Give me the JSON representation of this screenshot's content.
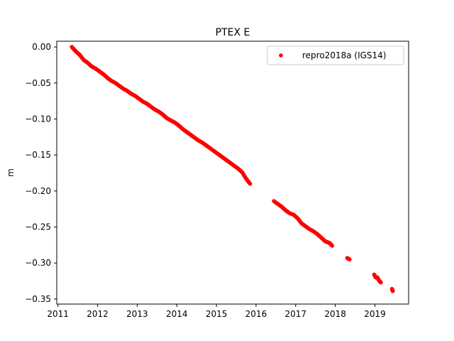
{
  "chart_data": {
    "type": "scatter",
    "title": "PTEX E",
    "xlabel": "",
    "ylabel": "m",
    "xlim": [
      2010.97,
      2019.85
    ],
    "ylim": [
      -0.357,
      0.008
    ],
    "x_ticks": [
      2011,
      2012,
      2013,
      2014,
      2015,
      2016,
      2017,
      2018,
      2019
    ],
    "x_tick_labels": [
      "2011",
      "2012",
      "2013",
      "2014",
      "2015",
      "2016",
      "2017",
      "2018",
      "2019"
    ],
    "y_ticks": [
      0.0,
      -0.05,
      -0.1,
      -0.15,
      -0.2,
      -0.25,
      -0.3,
      -0.35
    ],
    "y_tick_labels": [
      "0.00",
      "−0.05",
      "−0.10",
      "−0.15",
      "−0.20",
      "−0.25",
      "−0.30",
      "−0.35"
    ],
    "grid": false,
    "legend_position": "upper right",
    "colors": {
      "series": "#ff0000",
      "axes": "#000000",
      "background": "#ffffff"
    },
    "series": [
      {
        "name": "repro2018a (IGS14)",
        "marker": "dot",
        "points": [
          [
            2011.35,
            0.0
          ],
          [
            2011.45,
            -0.006
          ],
          [
            2011.55,
            -0.011
          ],
          [
            2011.65,
            -0.018
          ],
          [
            2011.75,
            -0.022
          ],
          [
            2011.85,
            -0.027
          ],
          [
            2011.95,
            -0.03
          ],
          [
            2012.05,
            -0.034
          ],
          [
            2012.15,
            -0.038
          ],
          [
            2012.25,
            -0.043
          ],
          [
            2012.35,
            -0.047
          ],
          [
            2012.45,
            -0.05
          ],
          [
            2012.55,
            -0.054
          ],
          [
            2012.65,
            -0.058
          ],
          [
            2012.75,
            -0.061
          ],
          [
            2012.85,
            -0.065
          ],
          [
            2012.95,
            -0.068
          ],
          [
            2013.05,
            -0.072
          ],
          [
            2013.15,
            -0.076
          ],
          [
            2013.25,
            -0.079
          ],
          [
            2013.35,
            -0.083
          ],
          [
            2013.45,
            -0.087
          ],
          [
            2013.55,
            -0.09
          ],
          [
            2013.65,
            -0.094
          ],
          [
            2013.75,
            -0.099
          ],
          [
            2013.85,
            -0.102
          ],
          [
            2013.95,
            -0.105
          ],
          [
            2014.05,
            -0.109
          ],
          [
            2014.15,
            -0.114
          ],
          [
            2014.25,
            -0.118
          ],
          [
            2014.35,
            -0.122
          ],
          [
            2014.45,
            -0.126
          ],
          [
            2014.55,
            -0.13
          ],
          [
            2014.65,
            -0.133
          ],
          [
            2014.75,
            -0.137
          ],
          [
            2014.85,
            -0.141
          ],
          [
            2014.95,
            -0.145
          ],
          [
            2015.05,
            -0.149
          ],
          [
            2015.15,
            -0.153
          ],
          [
            2015.25,
            -0.157
          ],
          [
            2015.35,
            -0.161
          ],
          [
            2015.45,
            -0.165
          ],
          [
            2015.55,
            -0.169
          ],
          [
            2015.65,
            -0.174
          ],
          [
            2015.75,
            -0.183
          ],
          [
            2015.85,
            -0.19
          ],
          [
            2016.45,
            -0.214
          ],
          [
            2016.55,
            -0.218
          ],
          [
            2016.65,
            -0.222
          ],
          [
            2016.75,
            -0.227
          ],
          [
            2016.85,
            -0.231
          ],
          [
            2016.95,
            -0.233
          ],
          [
            2017.05,
            -0.238
          ],
          [
            2017.15,
            -0.245
          ],
          [
            2017.25,
            -0.249
          ],
          [
            2017.35,
            -0.253
          ],
          [
            2017.45,
            -0.256
          ],
          [
            2017.55,
            -0.26
          ],
          [
            2017.65,
            -0.265
          ],
          [
            2017.75,
            -0.27
          ],
          [
            2017.85,
            -0.272
          ],
          [
            2017.92,
            -0.276
          ],
          [
            2018.3,
            -0.293
          ],
          [
            2018.36,
            -0.295
          ],
          [
            2018.98,
            -0.316
          ],
          [
            2019.02,
            -0.32
          ],
          [
            2019.06,
            -0.32
          ],
          [
            2019.1,
            -0.324
          ],
          [
            2019.15,
            -0.327
          ],
          [
            2019.43,
            -0.336
          ],
          [
            2019.45,
            -0.339
          ]
        ]
      }
    ]
  }
}
